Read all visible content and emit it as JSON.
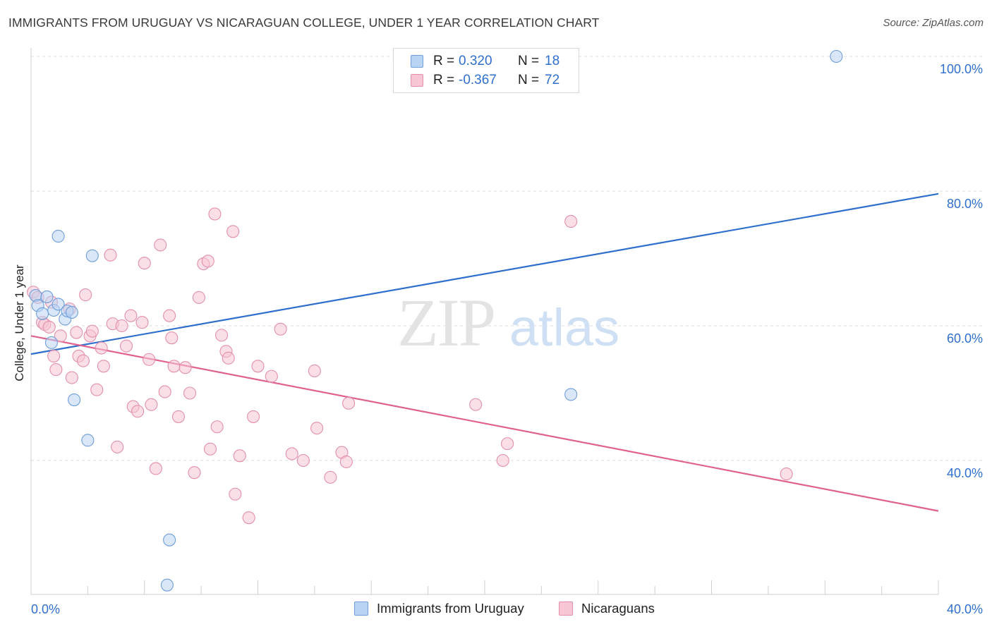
{
  "title": "IMMIGRANTS FROM URUGUAY VS NICARAGUAN COLLEGE, UNDER 1 YEAR CORRELATION CHART",
  "source": "Source: ZipAtlas.com",
  "watermark": {
    "zip": "ZIP",
    "atlas": "atlas"
  },
  "legend": {
    "rows": [
      {
        "r_label": "R =",
        "r_value": "0.320",
        "n_label": "N =",
        "n_value": "18"
      },
      {
        "r_label": "R =",
        "r_value": "-0.367",
        "n_label": "N =",
        "n_value": "72"
      }
    ]
  },
  "colors": {
    "uruguay_fill": "#b9d3f3",
    "uruguay_stroke": "#6f9ed8",
    "uruguay_line": "#2f6fcc",
    "nicaragua_fill": "#f8c5d4",
    "nicaragua_stroke": "#e28fab",
    "nicaragua_line": "#e0608e",
    "value_text": "#2f6fcc",
    "grid": "#dedede"
  },
  "chart_data": {
    "type": "scatter",
    "title": "IMMIGRANTS FROM URUGUAY VS NICARAGUAN COLLEGE, UNDER 1 YEAR CORRELATION CHART",
    "xlabel": "",
    "ylabel": "College, Under 1 year",
    "xlim": [
      0,
      40
    ],
    "ylim": [
      20,
      103
    ],
    "x_tick_labels": [
      "0.0%",
      "40.0%"
    ],
    "y_ticks": [
      40,
      60,
      80,
      100
    ],
    "y_tick_labels": [
      "40.0%",
      "60.0%",
      "80.0%",
      "100.0%"
    ],
    "grid": true,
    "legend_position": "top-center",
    "series": [
      {
        "name": "Immigrants from Uruguay",
        "color": "#6f9ed8",
        "points": [
          [
            0.2,
            64.5
          ],
          [
            0.3,
            63.0
          ],
          [
            0.5,
            61.8
          ],
          [
            0.7,
            64.3
          ],
          [
            0.9,
            57.5
          ],
          [
            1.0,
            62.3
          ],
          [
            1.2,
            63.2
          ],
          [
            1.5,
            61.0
          ],
          [
            1.6,
            62.2
          ],
          [
            1.8,
            62.0
          ],
          [
            1.2,
            73.3
          ],
          [
            2.7,
            70.4
          ],
          [
            1.9,
            49.0
          ],
          [
            2.5,
            43.0
          ],
          [
            6.1,
            28.2
          ],
          [
            6.0,
            21.5
          ],
          [
            23.8,
            49.8
          ],
          [
            35.5,
            100.0
          ]
        ],
        "trend": {
          "x": [
            0,
            40
          ],
          "y": [
            55.8,
            79.6
          ]
        }
      },
      {
        "name": "Nicaraguans",
        "color": "#e28fab",
        "points": [
          [
            0.1,
            65.0
          ],
          [
            0.3,
            64.2
          ],
          [
            0.5,
            60.5
          ],
          [
            0.6,
            60.2
          ],
          [
            0.8,
            59.8
          ],
          [
            0.9,
            63.5
          ],
          [
            1.0,
            55.5
          ],
          [
            1.1,
            53.5
          ],
          [
            1.3,
            58.5
          ],
          [
            1.7,
            62.5
          ],
          [
            1.8,
            52.3
          ],
          [
            2.0,
            59.0
          ],
          [
            2.1,
            55.5
          ],
          [
            2.3,
            54.8
          ],
          [
            2.4,
            64.6
          ],
          [
            2.6,
            58.5
          ],
          [
            2.7,
            59.2
          ],
          [
            2.9,
            50.5
          ],
          [
            3.1,
            56.7
          ],
          [
            3.2,
            54.0
          ],
          [
            3.5,
            70.5
          ],
          [
            3.6,
            60.3
          ],
          [
            3.8,
            42.0
          ],
          [
            4.0,
            60.0
          ],
          [
            4.2,
            57.0
          ],
          [
            4.4,
            61.5
          ],
          [
            4.5,
            48.0
          ],
          [
            4.7,
            47.3
          ],
          [
            4.9,
            60.5
          ],
          [
            5.0,
            69.3
          ],
          [
            5.2,
            55.0
          ],
          [
            5.3,
            48.3
          ],
          [
            5.5,
            38.8
          ],
          [
            5.7,
            72.0
          ],
          [
            5.9,
            50.2
          ],
          [
            6.1,
            61.5
          ],
          [
            6.2,
            58.2
          ],
          [
            6.3,
            54.0
          ],
          [
            6.5,
            46.5
          ],
          [
            6.8,
            53.8
          ],
          [
            7.0,
            50.0
          ],
          [
            7.2,
            38.2
          ],
          [
            7.4,
            64.2
          ],
          [
            7.6,
            69.2
          ],
          [
            7.8,
            69.6
          ],
          [
            7.9,
            41.7
          ],
          [
            8.1,
            76.6
          ],
          [
            8.2,
            45.0
          ],
          [
            8.4,
            58.6
          ],
          [
            8.6,
            56.2
          ],
          [
            8.7,
            55.2
          ],
          [
            8.9,
            74.0
          ],
          [
            9.0,
            35.0
          ],
          [
            9.2,
            40.7
          ],
          [
            9.6,
            31.5
          ],
          [
            9.8,
            46.5
          ],
          [
            10.0,
            54.0
          ],
          [
            10.6,
            52.5
          ],
          [
            11.0,
            59.5
          ],
          [
            11.5,
            41.0
          ],
          [
            12.0,
            40.0
          ],
          [
            12.5,
            53.3
          ],
          [
            12.6,
            44.8
          ],
          [
            13.2,
            37.5
          ],
          [
            13.7,
            41.2
          ],
          [
            13.9,
            39.8
          ],
          [
            14.0,
            48.5
          ],
          [
            19.6,
            48.3
          ],
          [
            20.8,
            40.0
          ],
          [
            21.0,
            42.5
          ],
          [
            23.8,
            75.5
          ],
          [
            33.3,
            38.0
          ]
        ],
        "trend": {
          "x": [
            0,
            40
          ],
          "y": [
            58.5,
            32.5
          ]
        }
      }
    ]
  },
  "bottom_legend": [
    "Immigrants from Uruguay",
    "Nicaraguans"
  ]
}
